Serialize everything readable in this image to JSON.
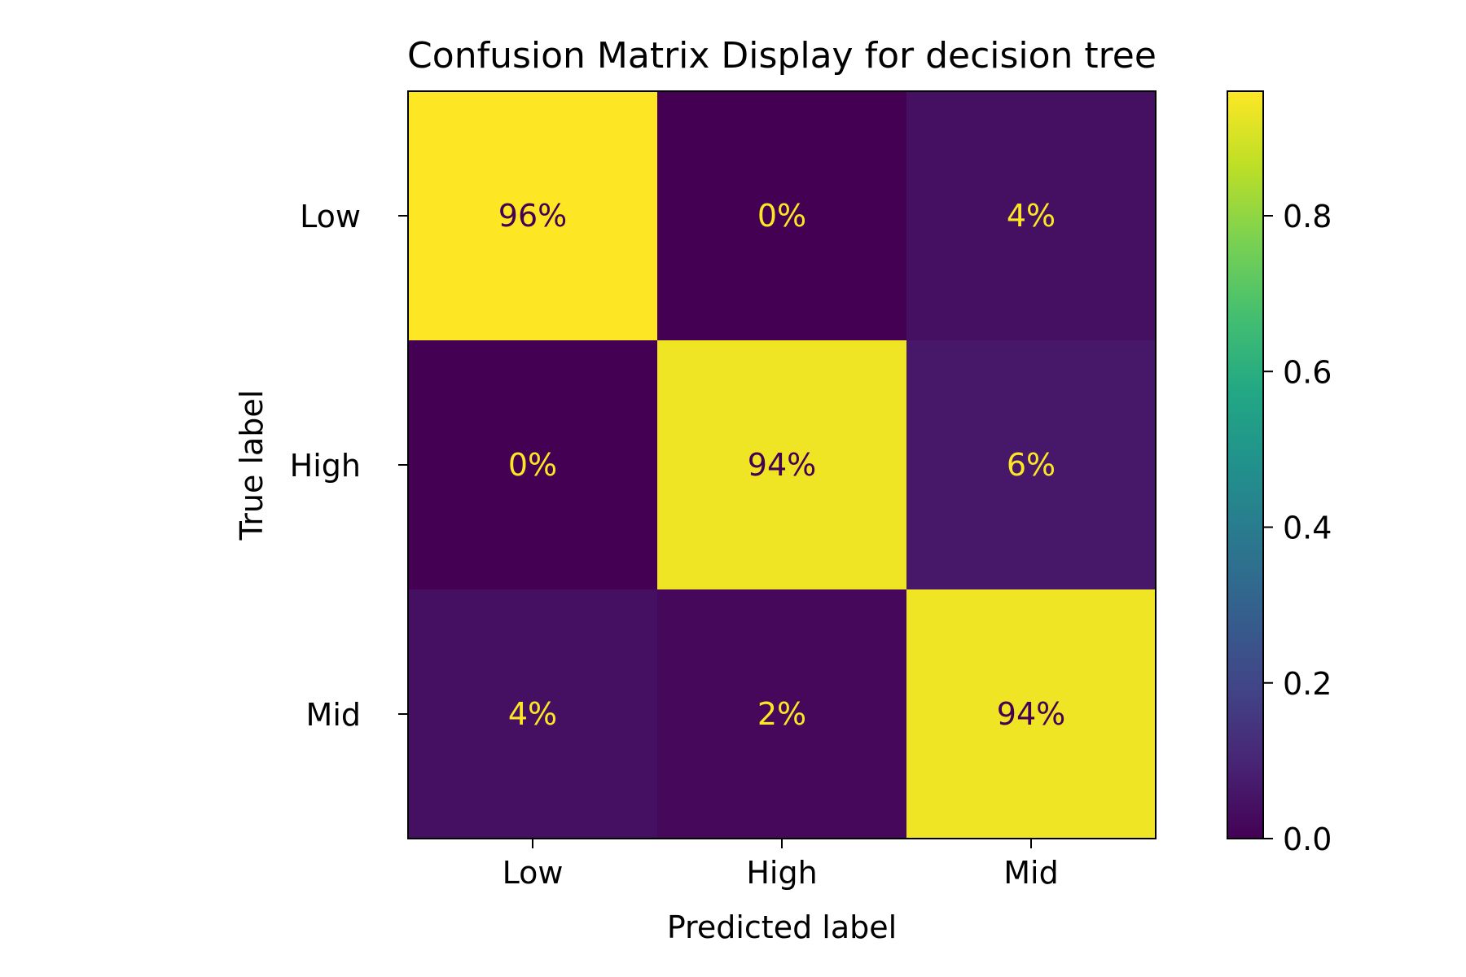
{
  "chart_data": {
    "type": "heatmap",
    "title": "Confusion Matrix Display for decision tree",
    "xlabel": "Predicted label",
    "ylabel": "True label",
    "x_categories": [
      "Low",
      "High",
      "Mid"
    ],
    "y_categories": [
      "Low",
      "High",
      "Mid"
    ],
    "values": [
      [
        0.96,
        0.0,
        0.04
      ],
      [
        0.0,
        0.94,
        0.06
      ],
      [
        0.04,
        0.02,
        0.94
      ]
    ],
    "cell_labels": [
      [
        "96%",
        "0%",
        "4%"
      ],
      [
        "0%",
        "94%",
        "6%"
      ],
      [
        "4%",
        "2%",
        "94%"
      ]
    ],
    "colormap": "viridis",
    "colorbar": {
      "range": [
        0,
        0.96
      ],
      "ticks": [
        0.0,
        0.2,
        0.4,
        0.6,
        0.8
      ],
      "tick_labels": [
        "0.0",
        "0.2",
        "0.4",
        "0.6",
        "0.8"
      ]
    },
    "text_colors": {
      "on_dark": "#fde725",
      "on_light": "#440154"
    }
  }
}
